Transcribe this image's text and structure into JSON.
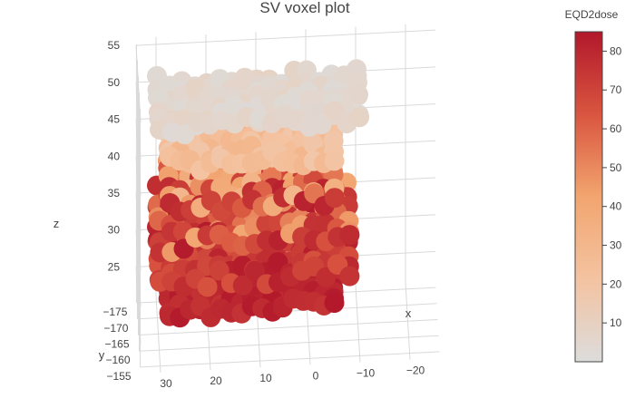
{
  "chart_data": {
    "type": "scatter",
    "subtype": "3d-voxel",
    "title": "SV voxel plot",
    "axes": {
      "x": {
        "label": "x",
        "ticks": [
          -20,
          -10,
          0,
          10,
          20,
          30
        ],
        "range": [
          -26,
          34
        ]
      },
      "y": {
        "label": "y",
        "ticks": [
          -175,
          -170,
          -165,
          -160,
          -155
        ],
        "range": [
          -177,
          -153
        ]
      },
      "z": {
        "label": "z",
        "ticks": [
          25,
          30,
          35,
          40,
          45,
          50,
          55
        ],
        "range": [
          21,
          56
        ]
      }
    },
    "colorbar": {
      "title": "EQD2dose",
      "ticks": [
        10,
        20,
        30,
        40,
        50,
        60,
        70,
        80
      ],
      "range": [
        0,
        85
      ],
      "colorscale": [
        "#dcdcdc",
        "#f4c3a1",
        "#f2a56f",
        "#d9553f",
        "#b2182b"
      ]
    },
    "grid": true,
    "voxel_layers": [
      {
        "z": 52,
        "x_range": [
          -10,
          30
        ],
        "y_range": [
          -172,
          -158
        ],
        "dose_range": [
          2,
          8
        ]
      },
      {
        "z": 47,
        "x_range": [
          -5,
          28
        ],
        "y_range": [
          -170,
          -158
        ],
        "dose_range": [
          18,
          30
        ]
      },
      {
        "z": 42,
        "x_range": [
          -5,
          28
        ],
        "y_range": [
          -168,
          -156
        ],
        "dose_range": [
          30,
          82
        ]
      },
      {
        "z": 37,
        "x_range": [
          -8,
          30
        ],
        "y_range": [
          -172,
          -156
        ],
        "dose_range": [
          40,
          85
        ]
      },
      {
        "z": 32,
        "x_range": [
          -8,
          30
        ],
        "y_range": [
          -172,
          -156
        ],
        "dose_range": [
          65,
          85
        ]
      },
      {
        "z": 27,
        "x_range": [
          -5,
          28
        ],
        "y_range": [
          -170,
          -158
        ],
        "dose_range": [
          75,
          85
        ]
      }
    ]
  }
}
